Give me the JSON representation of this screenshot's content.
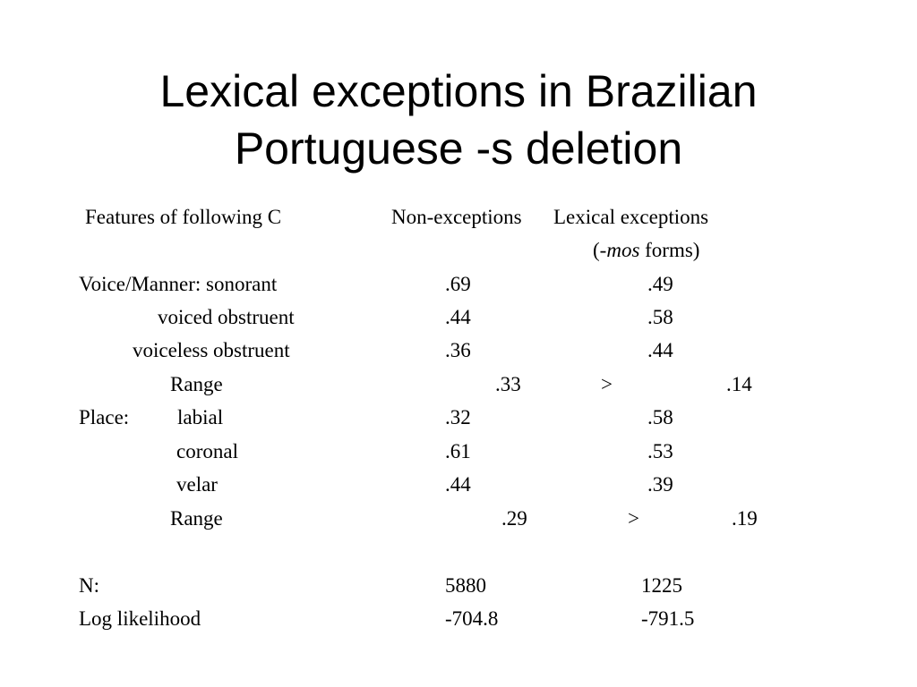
{
  "title": {
    "line1": "Lexical exceptions in Brazilian",
    "line2": "Portuguese -s deletion"
  },
  "header": {
    "features": "Features of following C",
    "non_exceptions": "Non-exceptions",
    "lexical_exceptions": "Lexical exceptions",
    "sub_open": "(-",
    "sub_italic": "mos",
    "sub_close": " forms)"
  },
  "rows": {
    "sonorant": {
      "label": "Voice/Manner:  sonorant",
      "non": ".69",
      "lex": ".49"
    },
    "voiced": {
      "label": "voiced obstruent",
      "non": ".44",
      "lex": ".58"
    },
    "voiceless": {
      "label": "voiceless obstruent",
      "non": ".36",
      "lex": ".44"
    },
    "range1": {
      "label": "Range",
      "non": ".33",
      "gt": ">",
      "lex": ".14"
    },
    "labial": {
      "prefix": "Place:",
      "label": "labial",
      "non": ".32",
      "lex": ".58"
    },
    "coronal": {
      "label": "coronal",
      "non": ".61",
      "lex": ".53"
    },
    "velar": {
      "label": "velar",
      "non": ".44",
      "lex": ".39"
    },
    "range2": {
      "label": "Range",
      "non": ".29",
      "gt": ">",
      "lex": ".19"
    },
    "n": {
      "label": "N:",
      "non": "5880",
      "lex": "1225"
    },
    "loglik": {
      "label": "Log likelihood",
      "non": "-704.8",
      "lex": "-791.5"
    }
  }
}
